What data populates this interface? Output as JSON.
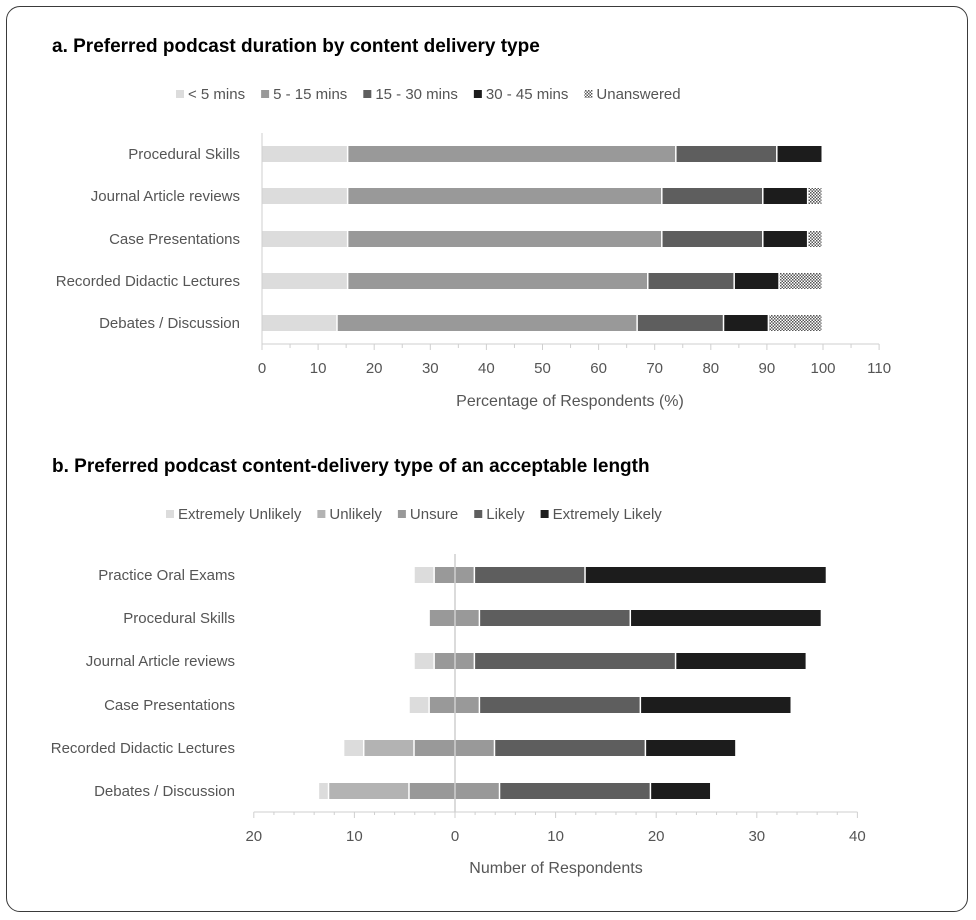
{
  "chart_data": [
    {
      "type": "bar",
      "orientation": "horizontal",
      "stacked": true,
      "title": "a. Preferred podcast duration by content delivery type",
      "xlabel": "Percentage of Respondents (%)",
      "xlim": [
        0,
        110
      ],
      "xticks": [
        0,
        10,
        20,
        30,
        40,
        50,
        60,
        70,
        80,
        90,
        100,
        110
      ],
      "legend_position": "top",
      "categories": [
        "Procedural Skills",
        "Journal Article reviews",
        "Case Presentations",
        "Recorded Didactic Lectures",
        "Debates / Discussion"
      ],
      "series": [
        {
          "name": "< 5 mins",
          "color": "#dcdcdc",
          "pattern": "solid",
          "values": [
            15.4,
            15.4,
            15.4,
            15.4,
            13.5
          ]
        },
        {
          "name": "5 - 15 mins",
          "color": "#999999",
          "pattern": "solid",
          "values": [
            58.5,
            56.0,
            56.0,
            53.5,
            53.5
          ]
        },
        {
          "name": "15 - 30 mins",
          "color": "#5e5e5e",
          "pattern": "solid",
          "values": [
            18.0,
            18.0,
            18.0,
            15.4,
            15.4
          ]
        },
        {
          "name": "30 - 45 mins",
          "color": "#1c1c1c",
          "pattern": "solid",
          "values": [
            8.1,
            8.0,
            8.0,
            8.0,
            8.0
          ]
        },
        {
          "name": "Unanswered",
          "color": "#888888",
          "pattern": "dotted",
          "values": [
            0,
            2.6,
            2.6,
            7.7,
            9.6
          ]
        }
      ]
    },
    {
      "type": "bar",
      "orientation": "horizontal",
      "stacked": "diverging",
      "title": "b. Preferred podcast content-delivery type of an acceptable length",
      "xlabel": "Number of Respondents",
      "xlim": [
        -20,
        40
      ],
      "xticks": [
        -20,
        -10,
        0,
        10,
        20,
        30,
        40
      ],
      "xtick_labels": [
        "20",
        "10",
        "0",
        "10",
        "20",
        "30",
        "40"
      ],
      "legend_position": "top",
      "categories": [
        "Practice Oral Exams",
        "Procedural Skills",
        "Journal Article reviews",
        "Case Presentations",
        "Recorded Didactic Lectures",
        "Debates / Discussion"
      ],
      "series": [
        {
          "name": "Extremely Unlikely",
          "color": "#dcdcdc",
          "values": [
            2,
            0,
            2,
            2,
            2,
            1
          ]
        },
        {
          "name": "Unlikely",
          "color": "#b3b3b3",
          "values": [
            0,
            0,
            0,
            0,
            5,
            8
          ]
        },
        {
          "name": "Unsure",
          "color": "#999999",
          "values": [
            4,
            5,
            4,
            5,
            8,
            9
          ]
        },
        {
          "name": "Likely",
          "color": "#5e5e5e",
          "values": [
            11,
            15,
            20,
            16,
            15,
            15
          ]
        },
        {
          "name": "Extremely Likely",
          "color": "#1c1c1c",
          "values": [
            24,
            19,
            13,
            15,
            9,
            6
          ]
        }
      ]
    }
  ]
}
